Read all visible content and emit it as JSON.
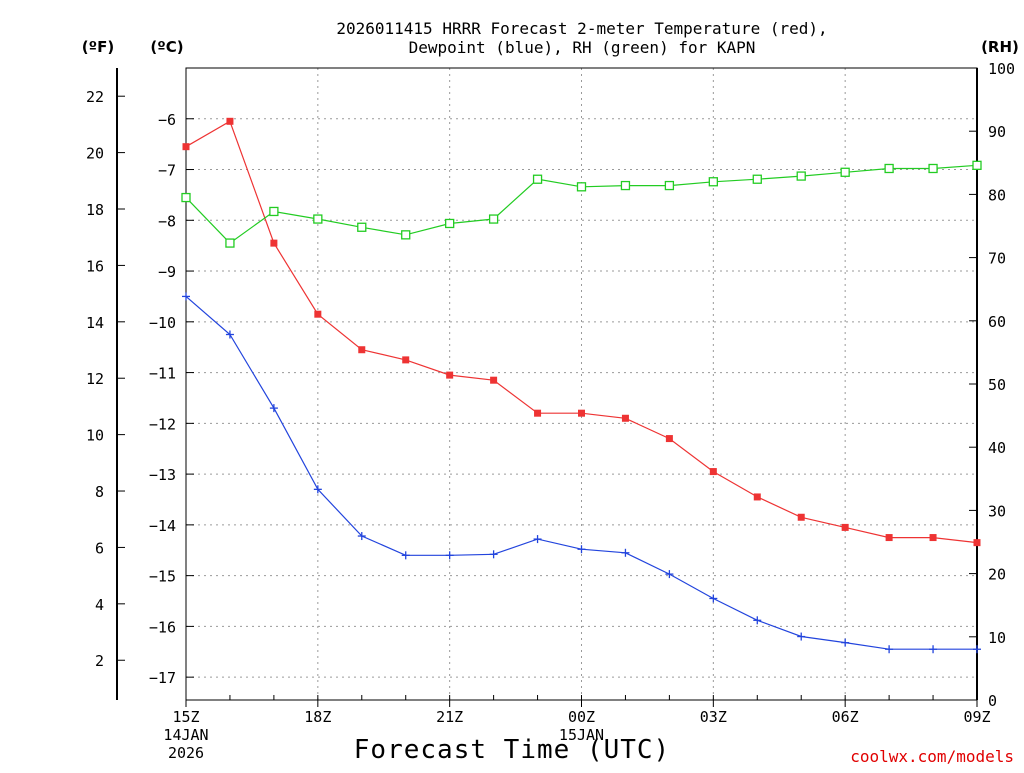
{
  "chart_data": {
    "type": "line",
    "title_lines": [
      "2026011415 HRRR Forecast 2-meter Temperature (red),",
      "Dewpoint (blue), RH (green) for KAPN"
    ],
    "xlabel": "Forecast Time (UTC)",
    "credit": "coolwx.com/models",
    "x_hours": [
      0,
      1,
      2,
      3,
      4,
      5,
      6,
      7,
      8,
      9,
      10,
      11,
      12,
      13,
      14,
      15,
      16,
      17,
      18
    ],
    "x_ticks": [
      {
        "hour": 0,
        "label": "15Z",
        "sub1": "14JAN",
        "sub2": "2026"
      },
      {
        "hour": 3,
        "label": "18Z"
      },
      {
        "hour": 6,
        "label": "21Z"
      },
      {
        "hour": 9,
        "label": "00Z",
        "sub1": "15JAN"
      },
      {
        "hour": 12,
        "label": "03Z"
      },
      {
        "hour": 15,
        "label": "06Z"
      },
      {
        "hour": 18,
        "label": "09Z"
      }
    ],
    "x_range": [
      0,
      18
    ],
    "y_celsius": {
      "unit_label": "(ºC)",
      "range": [
        -17.45,
        -5.0
      ],
      "ticks": [
        -6,
        -7,
        -8,
        -9,
        -10,
        -11,
        -12,
        -13,
        -14,
        -15,
        -16,
        -17
      ],
      "tick_labels": [
        "−6",
        "−7",
        "−8",
        "−9",
        "−10",
        "−11",
        "−12",
        "−13",
        "−14",
        "−15",
        "−16",
        "−17"
      ]
    },
    "y_fahrenheit": {
      "unit_label": "(ºF)",
      "ticks": [
        22,
        20,
        18,
        16,
        14,
        12,
        10,
        8,
        6,
        4,
        2
      ],
      "tick_labels": [
        "22",
        "20",
        "18",
        "16",
        "14",
        "12",
        "10",
        "8",
        "6",
        "4",
        "2"
      ]
    },
    "y_rh": {
      "unit_label": "(RH)",
      "range": [
        0,
        100
      ],
      "ticks": [
        100,
        90,
        80,
        70,
        60,
        50,
        40,
        30,
        20,
        10,
        0
      ],
      "tick_labels": [
        "100",
        "90",
        "80",
        "70",
        "60",
        "50",
        "40",
        "30",
        "20",
        "10",
        "0"
      ]
    },
    "grid": true,
    "series": [
      {
        "name": "Temperature",
        "axis": "celsius",
        "color": "#ee3333",
        "marker": "filled-square",
        "values": [
          -6.55,
          -6.05,
          -8.45,
          -9.85,
          -10.55,
          -10.75,
          -11.05,
          -11.15,
          -11.8,
          -11.8,
          -11.9,
          -12.3,
          -12.95,
          -13.45,
          -13.85,
          -14.05,
          -14.25,
          -14.25,
          -14.35
        ]
      },
      {
        "name": "Dewpoint",
        "axis": "celsius",
        "color": "#2244dd",
        "marker": "plus",
        "values": [
          -9.5,
          -10.25,
          -11.7,
          -13.3,
          -14.22,
          -14.6,
          -14.6,
          -14.58,
          -14.28,
          -14.48,
          -14.55,
          -14.97,
          -15.45,
          -15.88,
          -16.2,
          -16.32,
          -16.45,
          -16.45,
          -16.45
        ]
      },
      {
        "name": "RH",
        "axis": "rh",
        "color": "#22cc22",
        "marker": "open-square",
        "values": [
          79.5,
          72.3,
          77.3,
          76.1,
          74.8,
          73.6,
          75.4,
          76.1,
          82.4,
          81.2,
          81.4,
          81.4,
          82.0,
          82.4,
          82.9,
          83.5,
          84.1,
          84.1,
          84.6
        ]
      }
    ]
  }
}
